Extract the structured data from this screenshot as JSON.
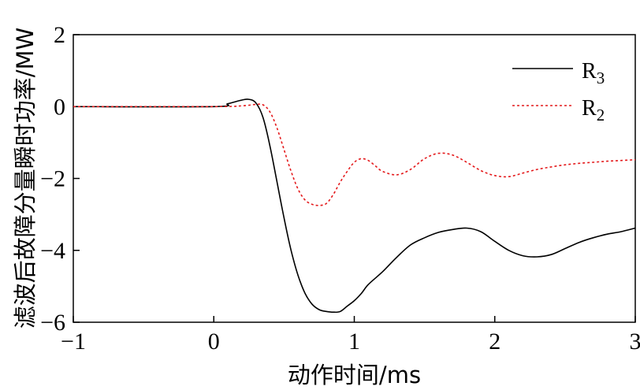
{
  "chart_data": {
    "type": "line",
    "title": "",
    "xlabel": "动作时间/ms",
    "ylabel": "滤波后故障分量瞬时功率/MW",
    "xlim": [
      -1,
      3
    ],
    "ylim": [
      -6,
      2
    ],
    "xticks": [
      -1,
      0,
      1,
      2,
      3
    ],
    "yticks": [
      -6,
      -4,
      -2,
      0,
      2
    ],
    "xtick_labels": [
      "−1",
      "0",
      "1",
      "2",
      "3"
    ],
    "ytick_labels": [
      "−6",
      "−4",
      "−2",
      "0",
      "2"
    ],
    "grid": false,
    "legend_position": "top-right",
    "series": [
      {
        "name": "R",
        "name_subscript": "3",
        "color": "#000000",
        "style": "solid",
        "x": [
          -1,
          0,
          0.1,
          0.2,
          0.25,
          0.3,
          0.35,
          0.4,
          0.45,
          0.5,
          0.55,
          0.6,
          0.65,
          0.7,
          0.75,
          0.8,
          0.85,
          0.9,
          0.95,
          1.0,
          1.05,
          1.1,
          1.2,
          1.3,
          1.4,
          1.5,
          1.6,
          1.7,
          1.8,
          1.9,
          2.0,
          2.1,
          2.2,
          2.3,
          2.4,
          2.5,
          2.6,
          2.7,
          2.8,
          2.9,
          3.0
        ],
        "y": [
          0,
          0,
          0.08,
          0.18,
          0.2,
          0.1,
          -0.3,
          -1.1,
          -2.1,
          -3.1,
          -4.0,
          -4.7,
          -5.2,
          -5.5,
          -5.65,
          -5.7,
          -5.72,
          -5.7,
          -5.55,
          -5.4,
          -5.2,
          -4.95,
          -4.6,
          -4.2,
          -3.85,
          -3.65,
          -3.5,
          -3.42,
          -3.38,
          -3.48,
          -3.75,
          -4.0,
          -4.15,
          -4.18,
          -4.12,
          -3.95,
          -3.78,
          -3.65,
          -3.55,
          -3.48,
          -3.38
        ]
      },
      {
        "name": "R",
        "name_subscript": "2",
        "color": "#e41a1c",
        "style": "dotted",
        "x": [
          -1,
          0,
          0.2,
          0.3,
          0.35,
          0.4,
          0.45,
          0.5,
          0.55,
          0.6,
          0.65,
          0.7,
          0.75,
          0.8,
          0.85,
          0.9,
          0.95,
          1.0,
          1.05,
          1.1,
          1.15,
          1.2,
          1.3,
          1.4,
          1.5,
          1.6,
          1.7,
          1.8,
          1.9,
          2.0,
          2.1,
          2.2,
          2.3,
          2.4,
          2.5,
          2.6,
          2.7,
          2.8,
          2.9,
          3.0
        ],
        "y": [
          0,
          0,
          0.02,
          0.06,
          0.05,
          -0.15,
          -0.6,
          -1.2,
          -1.8,
          -2.3,
          -2.6,
          -2.72,
          -2.75,
          -2.7,
          -2.45,
          -2.1,
          -1.8,
          -1.55,
          -1.45,
          -1.5,
          -1.65,
          -1.8,
          -1.9,
          -1.75,
          -1.45,
          -1.3,
          -1.35,
          -1.55,
          -1.78,
          -1.92,
          -1.95,
          -1.85,
          -1.75,
          -1.68,
          -1.62,
          -1.58,
          -1.55,
          -1.52,
          -1.5,
          -1.48
        ]
      }
    ]
  }
}
